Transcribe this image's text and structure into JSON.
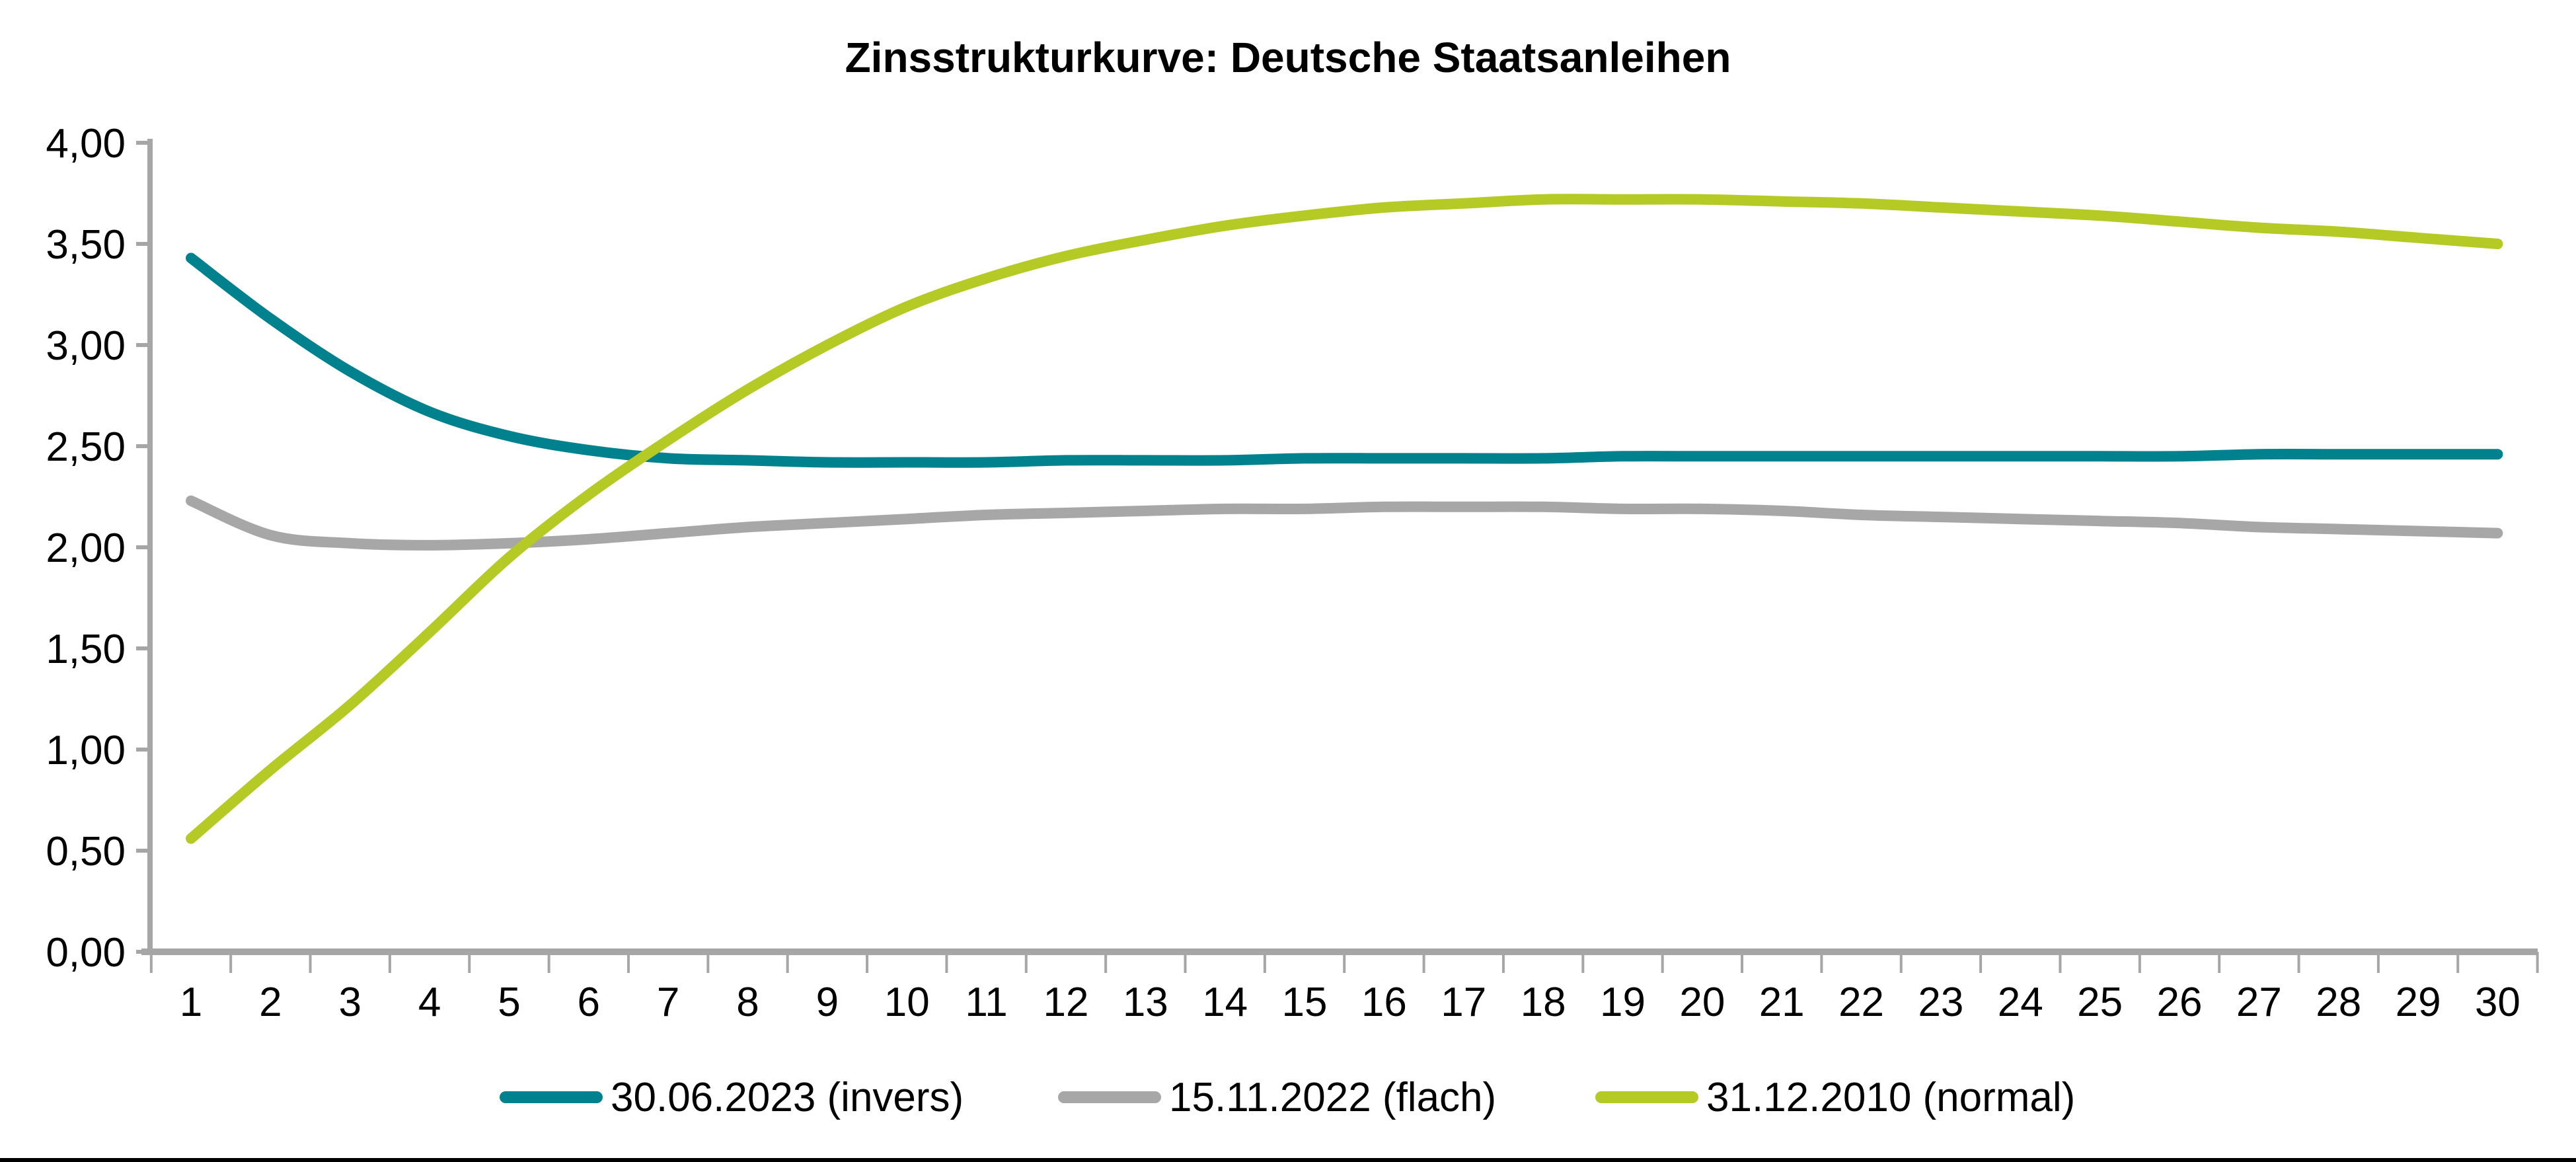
{
  "chart_data": {
    "type": "line",
    "title": "Zinsstrukturkurve: Deutsche Staatsanleihen",
    "xlabel": "",
    "ylabel": "",
    "x": [
      1,
      2,
      3,
      4,
      5,
      6,
      7,
      8,
      9,
      10,
      11,
      12,
      13,
      14,
      15,
      16,
      17,
      18,
      19,
      20,
      21,
      22,
      23,
      24,
      25,
      26,
      27,
      28,
      29,
      30
    ],
    "x_tick_labels": [
      "1",
      "2",
      "3",
      "4",
      "5",
      "6",
      "7",
      "8",
      "9",
      "10",
      "11",
      "12",
      "13",
      "14",
      "15",
      "16",
      "17",
      "18",
      "19",
      "20",
      "21",
      "22",
      "23",
      "24",
      "25",
      "26",
      "27",
      "28",
      "29",
      "30"
    ],
    "ylim": [
      0.0,
      4.0
    ],
    "y_tick_step": 0.5,
    "y_tick_labels": [
      "0,00",
      "0,50",
      "1,00",
      "1,50",
      "2,00",
      "2,50",
      "3,00",
      "3,50",
      "4,00"
    ],
    "decimal_separator": ",",
    "grid": false,
    "legend_position": "bottom",
    "axis_color": "#A6A6A6",
    "series": [
      {
        "name": "30.06.2023 (invers)",
        "color": "#00828E",
        "values": [
          3.43,
          3.13,
          2.87,
          2.67,
          2.55,
          2.48,
          2.44,
          2.43,
          2.42,
          2.42,
          2.42,
          2.43,
          2.43,
          2.43,
          2.44,
          2.44,
          2.44,
          2.44,
          2.45,
          2.45,
          2.45,
          2.45,
          2.45,
          2.45,
          2.45,
          2.45,
          2.46,
          2.46,
          2.46,
          2.46
        ]
      },
      {
        "name": "15.11.2022 (flach)",
        "color": "#A7A7A7",
        "values": [
          2.23,
          2.06,
          2.02,
          2.01,
          2.02,
          2.04,
          2.07,
          2.1,
          2.12,
          2.14,
          2.16,
          2.17,
          2.18,
          2.19,
          2.19,
          2.2,
          2.2,
          2.2,
          2.19,
          2.19,
          2.18,
          2.16,
          2.15,
          2.14,
          2.13,
          2.12,
          2.1,
          2.09,
          2.08,
          2.07
        ]
      },
      {
        "name": "31.12.2010 (normal)",
        "color": "#B6CA26",
        "values": [
          0.56,
          0.9,
          1.22,
          1.58,
          1.95,
          2.26,
          2.53,
          2.78,
          3.0,
          3.19,
          3.33,
          3.44,
          3.52,
          3.59,
          3.64,
          3.68,
          3.7,
          3.72,
          3.72,
          3.72,
          3.71,
          3.7,
          3.68,
          3.66,
          3.64,
          3.61,
          3.58,
          3.56,
          3.53,
          3.5
        ]
      }
    ]
  },
  "legend": {
    "items": [
      {
        "label": "30.06.2023 (invers)"
      },
      {
        "label": "15.11.2022 (flach)"
      },
      {
        "label": "31.12.2010 (normal)"
      }
    ]
  }
}
